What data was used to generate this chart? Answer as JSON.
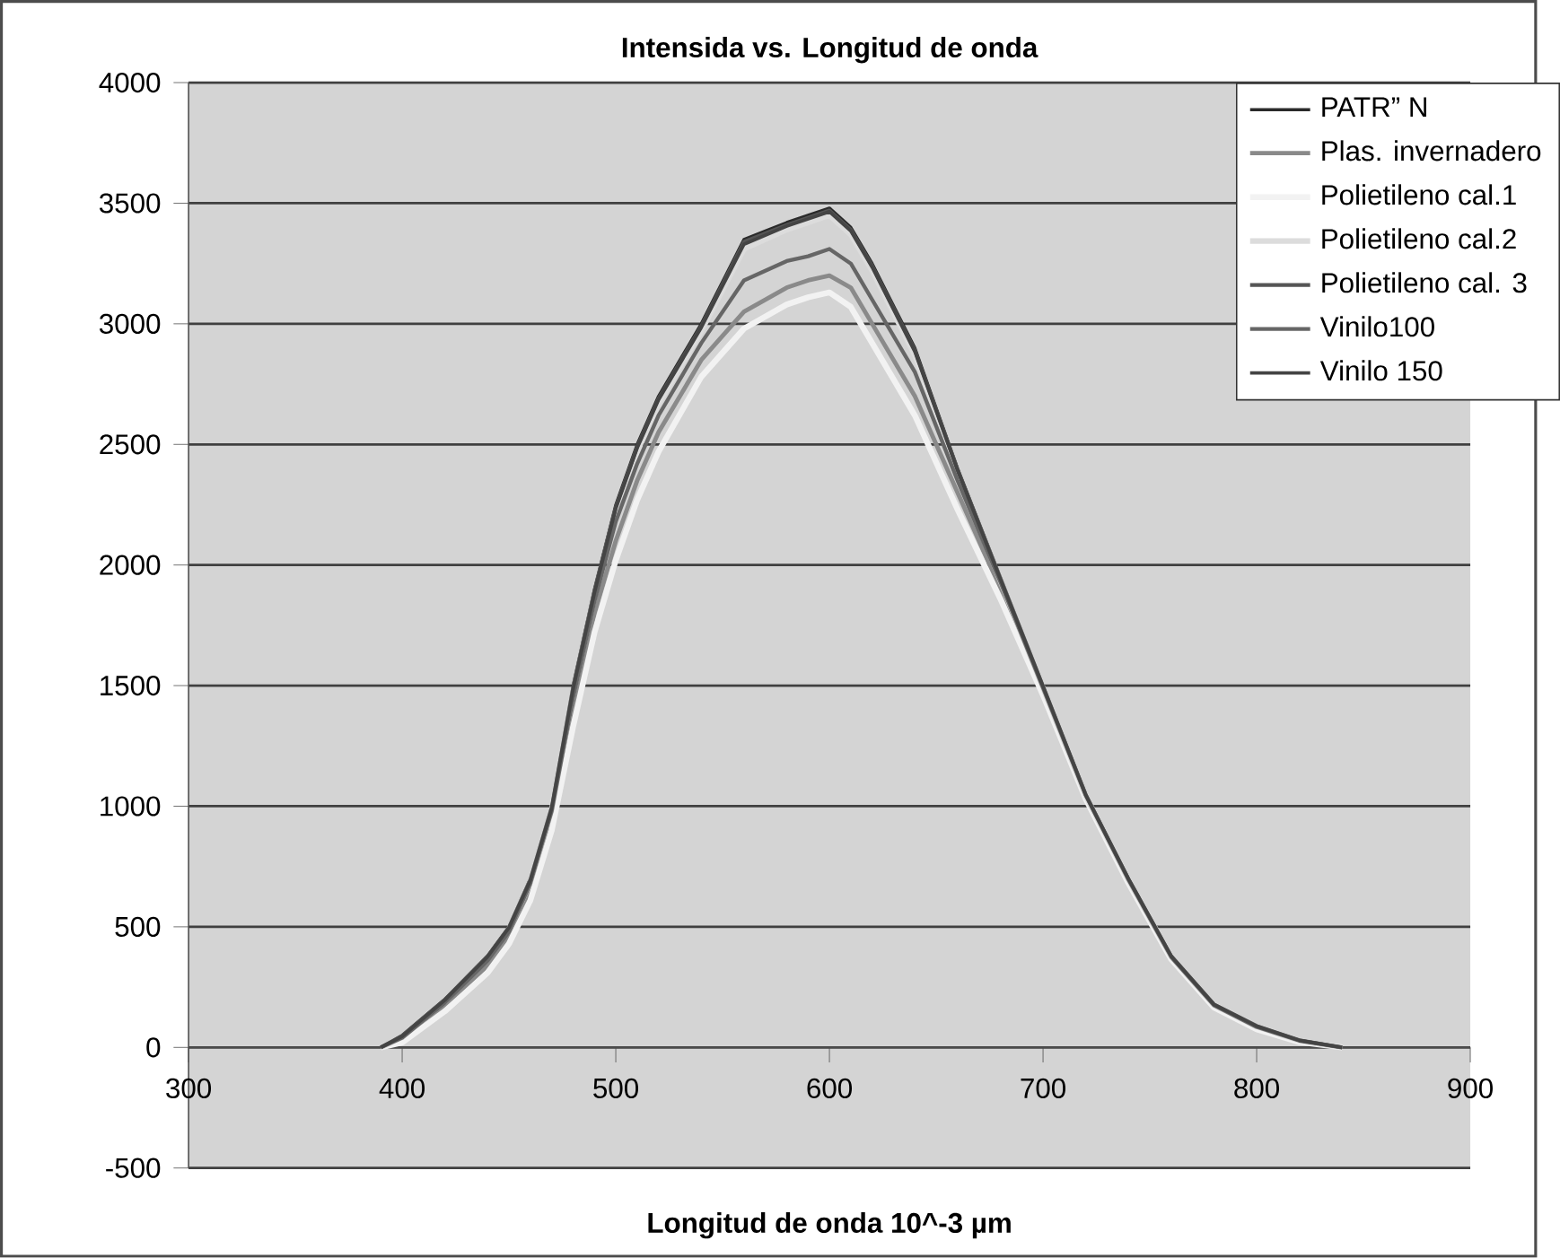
{
  "chart_data": {
    "type": "line",
    "title": "Intensida vs. Longitud de onda",
    "xlabel": "Longitud de onda 10^-3 µm",
    "x": [
      390,
      400,
      420,
      440,
      450,
      460,
      470,
      480,
      490,
      500,
      510,
      520,
      540,
      560,
      580,
      590,
      600,
      610,
      620,
      640,
      660,
      680,
      700,
      720,
      740,
      760,
      780,
      800,
      820,
      840
    ],
    "series": [
      {
        "name": "PATR” N",
        "color": "#2a2a2a",
        "values": [
          0,
          50,
          200,
          380,
          500,
          700,
          1000,
          1500,
          1900,
          2250,
          2500,
          2700,
          3000,
          3350,
          3420,
          3450,
          3480,
          3400,
          3250,
          2900,
          2400,
          1950,
          1500,
          1050,
          700,
          380,
          180,
          90,
          30,
          0
        ]
      },
      {
        "name": "Plas. invernadero",
        "color": "#8a8a8a",
        "values": [
          0,
          30,
          170,
          340,
          460,
          650,
          950,
          1400,
          1800,
          2100,
          2350,
          2550,
          2850,
          3050,
          3150,
          3180,
          3200,
          3150,
          3000,
          2700,
          2300,
          1900,
          1480,
          1040,
          690,
          370,
          170,
          80,
          25,
          0
        ]
      },
      {
        "name": "Polietileno cal.1",
        "color": "#f2f2f2",
        "values": [
          0,
          20,
          150,
          310,
          430,
          610,
          900,
          1330,
          1720,
          2020,
          2270,
          2470,
          2780,
          2980,
          3080,
          3110,
          3130,
          3070,
          2920,
          2620,
          2230,
          1860,
          1460,
          1030,
          680,
          365,
          165,
          75,
          22,
          0
        ]
      },
      {
        "name": "Polietileno cal.2",
        "color": "#dcdcdc",
        "values": [
          0,
          42,
          190,
          370,
          490,
          685,
          985,
          1470,
          1870,
          2220,
          2470,
          2670,
          2970,
          3310,
          3390,
          3420,
          3450,
          3370,
          3220,
          2870,
          2380,
          1935,
          1490,
          1042,
          695,
          376,
          176,
          86,
          28,
          0
        ]
      },
      {
        "name": "Polietileno cal. 3",
        "color": "#555555",
        "values": [
          0,
          48,
          198,
          378,
          498,
          695,
          995,
          1490,
          1890,
          2240,
          2490,
          2690,
          2990,
          3340,
          3410,
          3440,
          3470,
          3390,
          3240,
          2890,
          2395,
          1945,
          1498,
          1048,
          699,
          379,
          179,
          89,
          30,
          0
        ]
      },
      {
        "name": "Vinilo100",
        "color": "#666666",
        "values": [
          0,
          40,
          185,
          360,
          480,
          680,
          980,
          1450,
          1850,
          2180,
          2420,
          2620,
          2920,
          3180,
          3260,
          3280,
          3310,
          3250,
          3100,
          2800,
          2350,
          1930,
          1490,
          1045,
          695,
          375,
          175,
          85,
          28,
          0
        ]
      },
      {
        "name": "Vinilo 150",
        "color": "#444444",
        "values": [
          0,
          46,
          196,
          376,
          496,
          692,
          992,
          1485,
          1885,
          2235,
          2485,
          2685,
          2985,
          3330,
          3405,
          3435,
          3465,
          3385,
          3235,
          2885,
          2392,
          1942,
          1496,
          1046,
          698,
          378,
          178,
          88,
          29,
          0
        ]
      }
    ],
    "xlim": [
      300,
      900
    ],
    "ylim": [
      -500,
      4000
    ],
    "xticks": [
      300,
      400,
      500,
      600,
      700,
      800,
      900
    ],
    "yticks": [
      -500,
      0,
      500,
      1000,
      1500,
      2000,
      2500,
      3000,
      3500,
      4000
    ],
    "grid": "y",
    "legend": "top right"
  }
}
